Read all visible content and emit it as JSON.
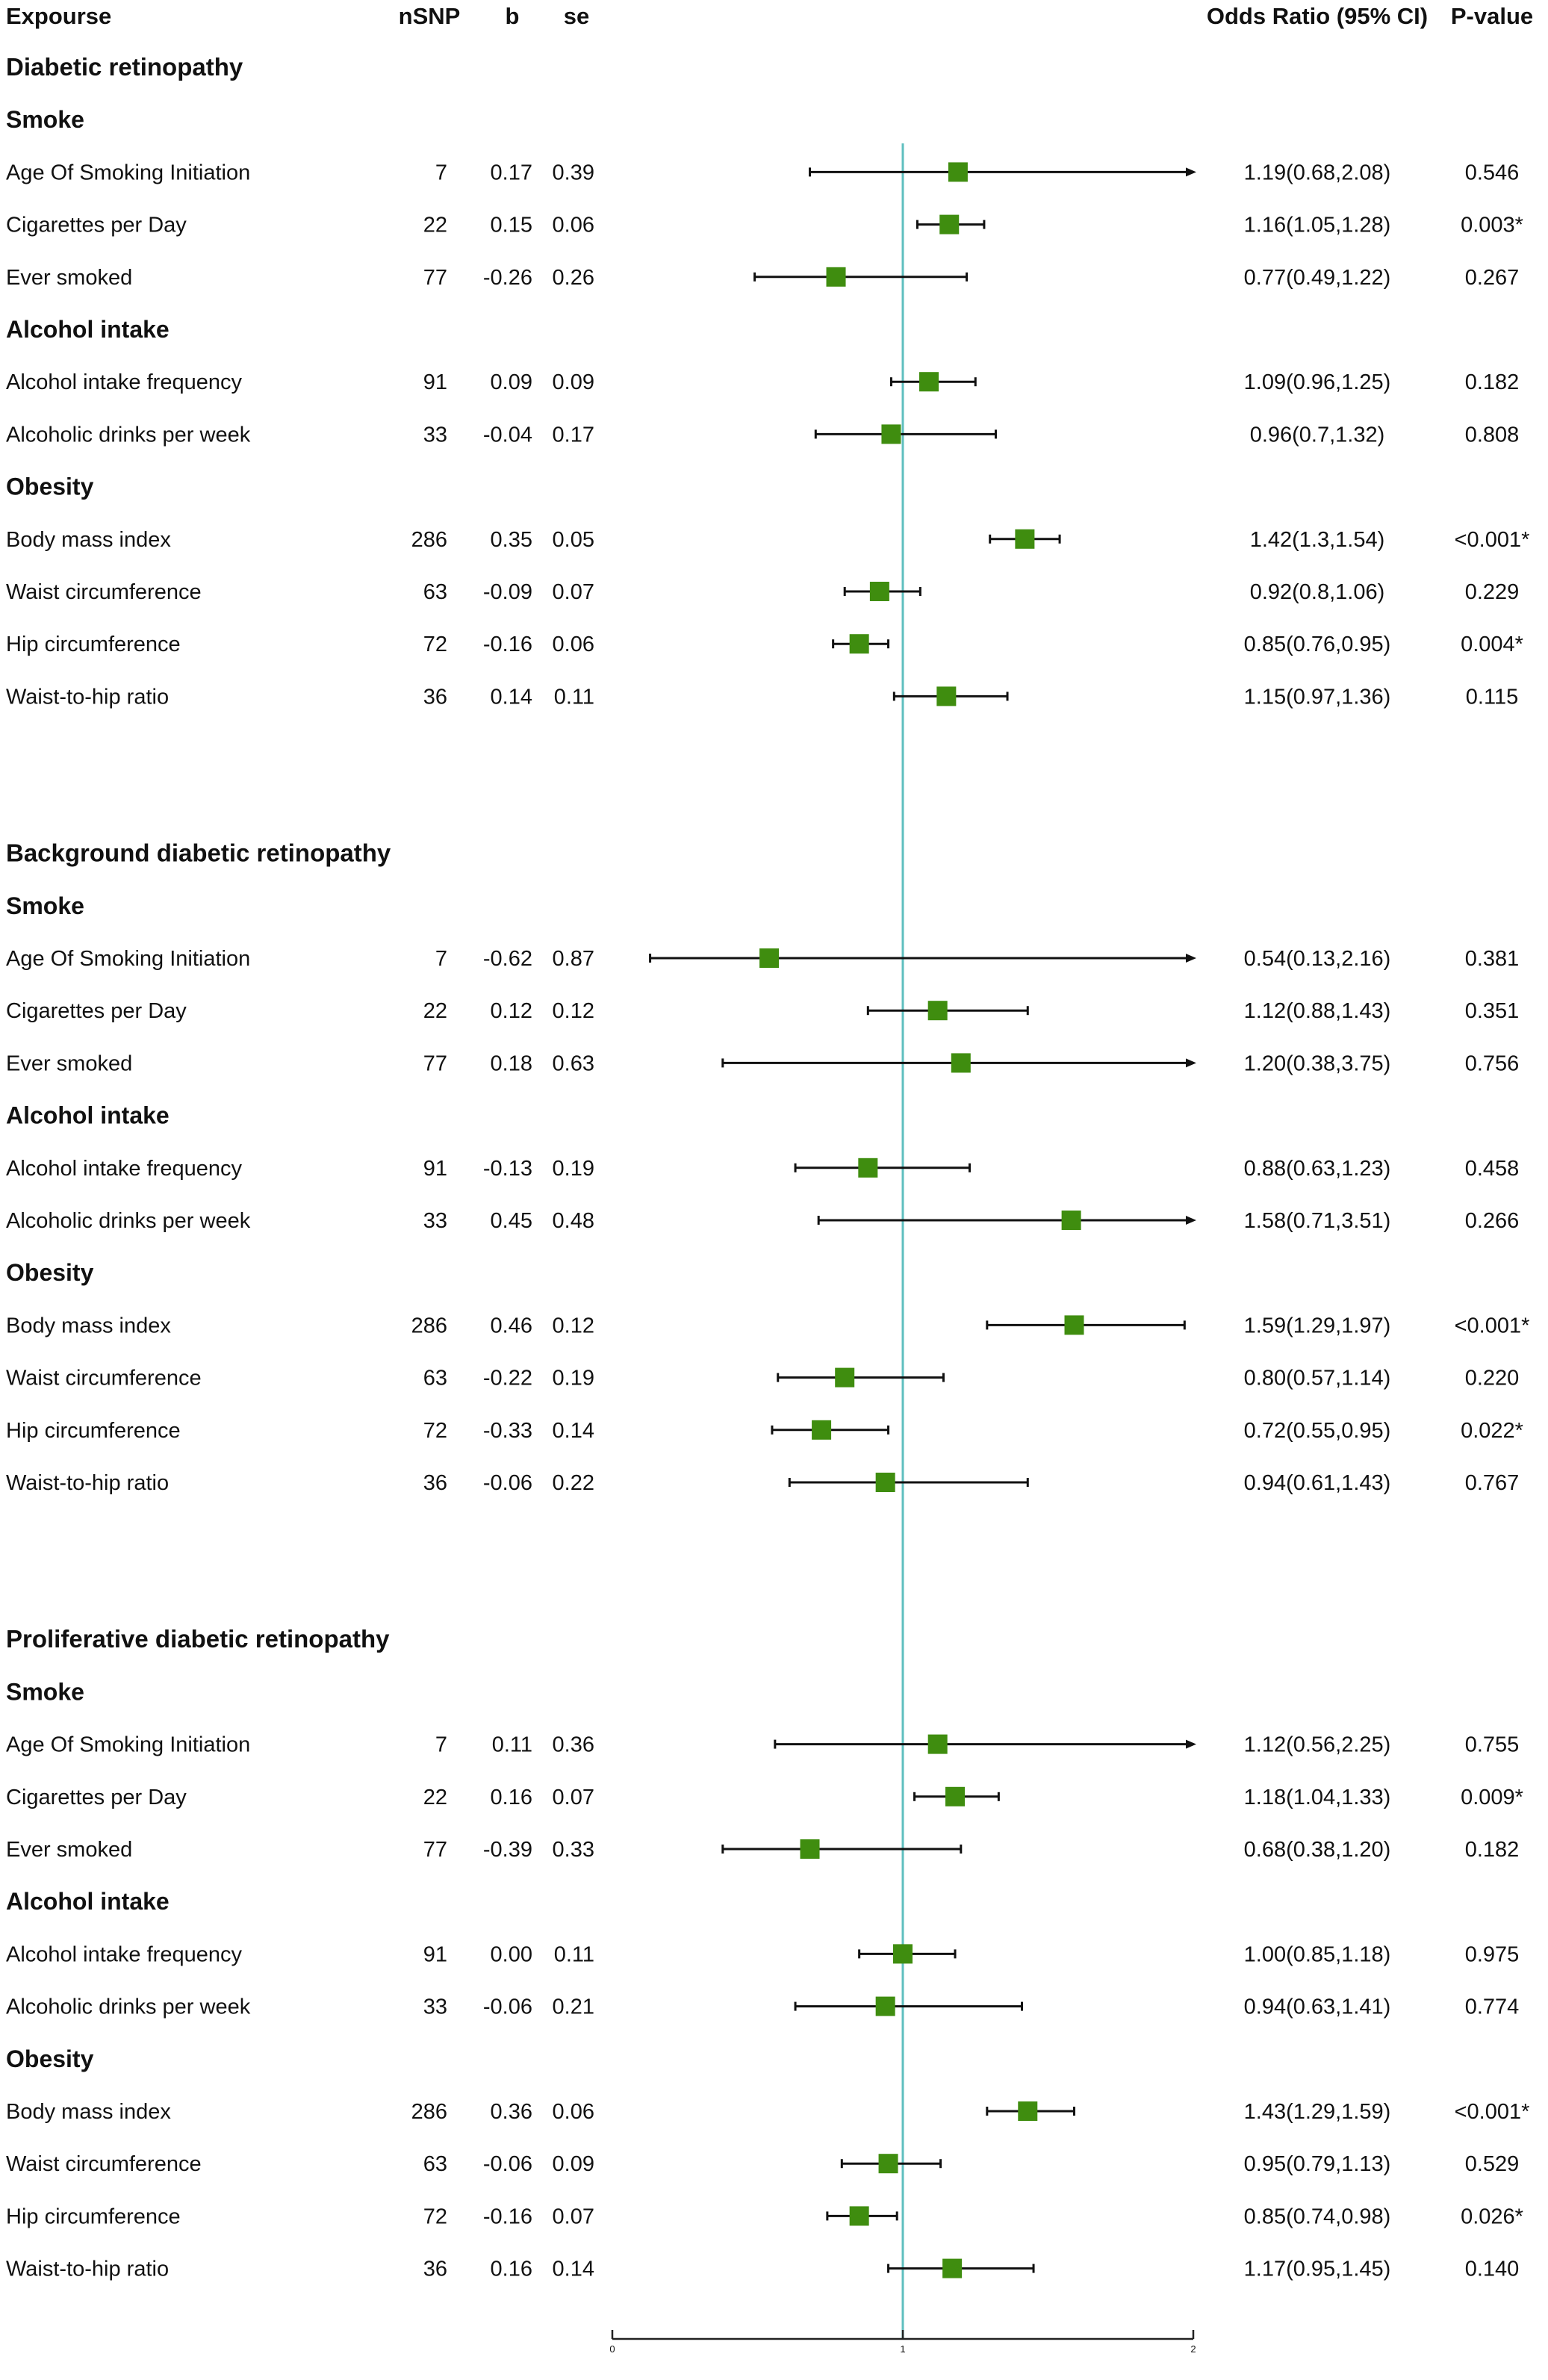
{
  "chart_data": {
    "type": "forest",
    "headers": {
      "exposure": "Expourse",
      "nsnp": "nSNP",
      "b": "b",
      "se": "se",
      "or": "Odds Ratio (95% CI)",
      "p": "P-value"
    },
    "xlim": [
      0,
      2
    ],
    "ticks": [
      "0",
      "1",
      "2"
    ],
    "ref_line": 1,
    "colors": {
      "marker": "#3f8d0f",
      "ref": "#5fbfbf",
      "ci": "#111111"
    },
    "groups": [
      {
        "name": "Diabetic retinopathy",
        "subgroups": [
          {
            "name": "Smoke",
            "rows": [
              {
                "exposure": "Age Of Smoking Initiation",
                "nsnp": "7",
                "b": "0.17",
                "se": "0.39",
                "or_ci": "1.19(0.68,2.08)",
                "p": "0.546",
                "or": 1.19,
                "lo": 0.68,
                "hi": 2.08
              },
              {
                "exposure": "Cigarettes per Day",
                "nsnp": "22",
                "b": "0.15",
                "se": "0.06",
                "or_ci": "1.16(1.05,1.28)",
                "p": "0.003*",
                "or": 1.16,
                "lo": 1.05,
                "hi": 1.28
              },
              {
                "exposure": "Ever smoked",
                "nsnp": "77",
                "b": "-0.26",
                "se": "0.26",
                "or_ci": "0.77(0.49,1.22)",
                "p": "0.267",
                "or": 0.77,
                "lo": 0.49,
                "hi": 1.22
              }
            ]
          },
          {
            "name": "Alcohol intake",
            "rows": [
              {
                "exposure": "Alcohol intake frequency",
                "nsnp": "91",
                "b": "0.09",
                "se": "0.09",
                "or_ci": "1.09(0.96,1.25)",
                "p": "0.182",
                "or": 1.09,
                "lo": 0.96,
                "hi": 1.25
              },
              {
                "exposure": "Alcoholic drinks per week",
                "nsnp": "33",
                "b": "-0.04",
                "se": "0.17",
                "or_ci": "0.96(0.7,1.32)",
                "p": "0.808",
                "or": 0.96,
                "lo": 0.7,
                "hi": 1.32
              }
            ]
          },
          {
            "name": "Obesity",
            "rows": [
              {
                "exposure": "Body mass index",
                "nsnp": "286",
                "b": "0.35",
                "se": "0.05",
                "or_ci": "1.42(1.3,1.54)",
                "p": "<0.001*",
                "or": 1.42,
                "lo": 1.3,
                "hi": 1.54
              },
              {
                "exposure": "Waist circumference",
                "nsnp": "63",
                "b": "-0.09",
                "se": "0.07",
                "or_ci": "0.92(0.8,1.06)",
                "p": "0.229",
                "or": 0.92,
                "lo": 0.8,
                "hi": 1.06
              },
              {
                "exposure": "Hip circumference",
                "nsnp": "72",
                "b": "-0.16",
                "se": "0.06",
                "or_ci": "0.85(0.76,0.95)",
                "p": "0.004*",
                "or": 0.85,
                "lo": 0.76,
                "hi": 0.95
              },
              {
                "exposure": "Waist-to-hip ratio",
                "nsnp": "36",
                "b": "0.14",
                "se": "0.11",
                "or_ci": "1.15(0.97,1.36)",
                "p": "0.115",
                "or": 1.15,
                "lo": 0.97,
                "hi": 1.36
              }
            ]
          }
        ]
      },
      {
        "name": "Background diabetic retinopathy",
        "subgroups": [
          {
            "name": "Smoke",
            "rows": [
              {
                "exposure": "Age Of Smoking Initiation",
                "nsnp": "7",
                "b": "-0.62",
                "se": "0.87",
                "or_ci": "0.54(0.13,2.16)",
                "p": "0.381",
                "or": 0.54,
                "lo": 0.13,
                "hi": 2.16
              },
              {
                "exposure": "Cigarettes per Day",
                "nsnp": "22",
                "b": "0.12",
                "se": "0.12",
                "or_ci": "1.12(0.88,1.43)",
                "p": "0.351",
                "or": 1.12,
                "lo": 0.88,
                "hi": 1.43
              },
              {
                "exposure": "Ever smoked",
                "nsnp": "77",
                "b": "0.18",
                "se": "0.63",
                "or_ci": "1.20(0.38,3.75)",
                "p": "0.756",
                "or": 1.2,
                "lo": 0.38,
                "hi": 3.75
              }
            ]
          },
          {
            "name": "Alcohol intake",
            "rows": [
              {
                "exposure": "Alcohol intake frequency",
                "nsnp": "91",
                "b": "-0.13",
                "se": "0.19",
                "or_ci": "0.88(0.63,1.23)",
                "p": "0.458",
                "or": 0.88,
                "lo": 0.63,
                "hi": 1.23
              },
              {
                "exposure": "Alcoholic drinks per week",
                "nsnp": "33",
                "b": "0.45",
                "se": "0.48",
                "or_ci": "1.58(0.71,3.51)",
                "p": "0.266",
                "or": 1.58,
                "lo": 0.71,
                "hi": 3.51
              }
            ]
          },
          {
            "name": "Obesity",
            "rows": [
              {
                "exposure": "Body mass index",
                "nsnp": "286",
                "b": "0.46",
                "se": "0.12",
                "or_ci": "1.59(1.29,1.97)",
                "p": "<0.001*",
                "or": 1.59,
                "lo": 1.29,
                "hi": 1.97
              },
              {
                "exposure": "Waist circumference",
                "nsnp": "63",
                "b": "-0.22",
                "se": "0.19",
                "or_ci": "0.80(0.57,1.14)",
                "p": "0.220",
                "or": 0.8,
                "lo": 0.57,
                "hi": 1.14
              },
              {
                "exposure": "Hip circumference",
                "nsnp": "72",
                "b": "-0.33",
                "se": "0.14",
                "or_ci": "0.72(0.55,0.95)",
                "p": "0.022*",
                "or": 0.72,
                "lo": 0.55,
                "hi": 0.95
              },
              {
                "exposure": "Waist-to-hip ratio",
                "nsnp": "36",
                "b": "-0.06",
                "se": "0.22",
                "or_ci": "0.94(0.61,1.43)",
                "p": "0.767",
                "or": 0.94,
                "lo": 0.61,
                "hi": 1.43
              }
            ]
          }
        ]
      },
      {
        "name": "Proliferative diabetic retinopathy",
        "subgroups": [
          {
            "name": "Smoke",
            "rows": [
              {
                "exposure": "Age Of Smoking Initiation",
                "nsnp": "7",
                "b": "0.11",
                "se": "0.36",
                "or_ci": "1.12(0.56,2.25)",
                "p": "0.755",
                "or": 1.12,
                "lo": 0.56,
                "hi": 2.25
              },
              {
                "exposure": "Cigarettes per Day",
                "nsnp": "22",
                "b": "0.16",
                "se": "0.07",
                "or_ci": "1.18(1.04,1.33)",
                "p": "0.009*",
                "or": 1.18,
                "lo": 1.04,
                "hi": 1.33
              },
              {
                "exposure": "Ever smoked",
                "nsnp": "77",
                "b": "-0.39",
                "se": "0.33",
                "or_ci": "0.68(0.38,1.20)",
                "p": "0.182",
                "or": 0.68,
                "lo": 0.38,
                "hi": 1.2
              }
            ]
          },
          {
            "name": "Alcohol intake",
            "rows": [
              {
                "exposure": "Alcohol intake frequency",
                "nsnp": "91",
                "b": "0.00",
                "se": "0.11",
                "or_ci": "1.00(0.85,1.18)",
                "p": "0.975",
                "or": 1.0,
                "lo": 0.85,
                "hi": 1.18
              },
              {
                "exposure": "Alcoholic drinks per week",
                "nsnp": "33",
                "b": "-0.06",
                "se": "0.21",
                "or_ci": "0.94(0.63,1.41)",
                "p": "0.774",
                "or": 0.94,
                "lo": 0.63,
                "hi": 1.41
              }
            ]
          },
          {
            "name": "Obesity",
            "rows": [
              {
                "exposure": "Body mass index",
                "nsnp": "286",
                "b": "0.36",
                "se": "0.06",
                "or_ci": "1.43(1.29,1.59)",
                "p": "<0.001*",
                "or": 1.43,
                "lo": 1.29,
                "hi": 1.59
              },
              {
                "exposure": "Waist circumference",
                "nsnp": "63",
                "b": "-0.06",
                "se": "0.09",
                "or_ci": "0.95(0.79,1.13)",
                "p": "0.529",
                "or": 0.95,
                "lo": 0.79,
                "hi": 1.13
              },
              {
                "exposure": "Hip circumference",
                "nsnp": "72",
                "b": "-0.16",
                "se": "0.07",
                "or_ci": "0.85(0.74,0.98)",
                "p": "0.026*",
                "or": 0.85,
                "lo": 0.74,
                "hi": 0.98
              },
              {
                "exposure": "Waist-to-hip ratio",
                "nsnp": "36",
                "b": "0.16",
                "se": "0.14",
                "or_ci": "1.17(0.95,1.45)",
                "p": "0.140",
                "or": 1.17,
                "lo": 0.95,
                "hi": 1.45
              }
            ]
          }
        ]
      }
    ]
  }
}
